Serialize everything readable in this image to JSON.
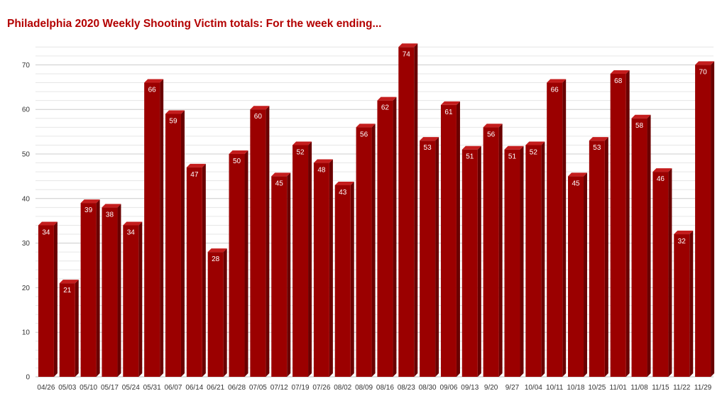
{
  "chart_data": {
    "type": "bar",
    "title": "Philadelphia 2020 Weekly Shooting Victim totals: For the week ending...",
    "xlabel": "",
    "ylabel": "",
    "ylim": [
      0,
      75
    ],
    "yticks": [
      0,
      10,
      20,
      30,
      40,
      50,
      60,
      70
    ],
    "grid": true,
    "legend": "none",
    "colors": {
      "bar": "#9b0000",
      "bar_top": "#c41d1d",
      "bar_side": "#6a0000",
      "title": "#b30000"
    },
    "categories": [
      "04/26",
      "05/03",
      "05/10",
      "05/17",
      "05/24",
      "05/31",
      "06/07",
      "06/14",
      "06/21",
      "06/28",
      "07/05",
      "07/12",
      "07/19",
      "07/26",
      "08/02",
      "08/09",
      "08/16",
      "08/23",
      "08/30",
      "09/06",
      "09/13",
      "9/20",
      "9/27",
      "10/04",
      "10/11",
      "10/18",
      "10/25",
      "11/01",
      "11/08",
      "11/15",
      "11/22",
      "11/29"
    ],
    "values": [
      34,
      21,
      39,
      38,
      34,
      66,
      59,
      47,
      28,
      50,
      60,
      45,
      52,
      48,
      43,
      56,
      62,
      74,
      53,
      61,
      51,
      56,
      51,
      52,
      66,
      45,
      53,
      68,
      58,
      46,
      32,
      70
    ]
  }
}
